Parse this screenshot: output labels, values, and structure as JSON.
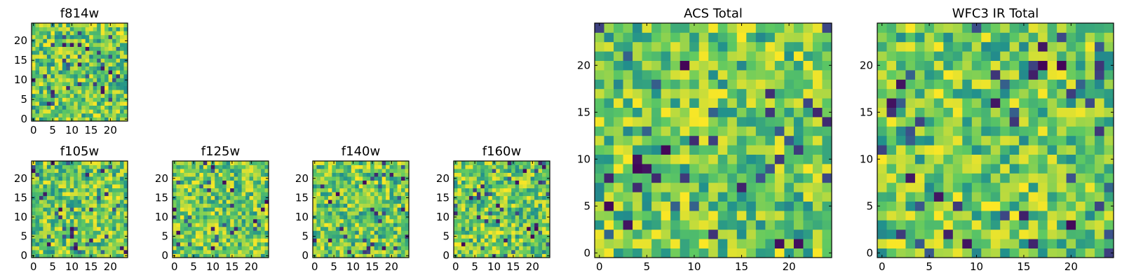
{
  "figure": {
    "colormap": "viridis",
    "colormap_stops": [
      "#440154",
      "#3b528b",
      "#21918c",
      "#5ec962",
      "#fde725"
    ],
    "background": "#ffffff"
  },
  "chart_data": [
    {
      "type": "heatmap",
      "title": "f814w",
      "grid_size": [
        25,
        25
      ],
      "xlim": [
        -0.5,
        24.5
      ],
      "ylim": [
        -0.5,
        24.5
      ],
      "xticks": [
        0,
        5,
        10,
        15,
        20
      ],
      "yticks": [
        0,
        5,
        10,
        15,
        20
      ],
      "value_range": [
        0,
        1
      ],
      "values": "pixel noise (25×25)"
    },
    {
      "type": "heatmap",
      "title": "f105w",
      "grid_size": [
        25,
        25
      ],
      "xlim": [
        -0.5,
        24.5
      ],
      "ylim": [
        -0.5,
        24.5
      ],
      "xticks": [
        0,
        5,
        10,
        15,
        20
      ],
      "yticks": [
        0,
        5,
        10,
        15,
        20
      ],
      "value_range": [
        0,
        1
      ],
      "values": "pixel noise (25×25)"
    },
    {
      "type": "heatmap",
      "title": "f125w",
      "grid_size": [
        25,
        25
      ],
      "xlim": [
        -0.5,
        24.5
      ],
      "ylim": [
        -0.5,
        24.5
      ],
      "xticks": [
        0,
        5,
        10,
        15,
        20
      ],
      "yticks": [
        0,
        5,
        10,
        15,
        20
      ],
      "value_range": [
        0,
        1
      ],
      "values": "pixel noise (25×25)"
    },
    {
      "type": "heatmap",
      "title": "f140w",
      "grid_size": [
        25,
        25
      ],
      "xlim": [
        -0.5,
        24.5
      ],
      "ylim": [
        -0.5,
        24.5
      ],
      "xticks": [
        0,
        5,
        10,
        15,
        20
      ],
      "yticks": [
        0,
        5,
        10,
        15,
        20
      ],
      "value_range": [
        0,
        1
      ],
      "values": "pixel noise (25×25)"
    },
    {
      "type": "heatmap",
      "title": "f160w",
      "grid_size": [
        25,
        25
      ],
      "xlim": [
        -0.5,
        24.5
      ],
      "ylim": [
        -0.5,
        24.5
      ],
      "xticks": [
        0,
        5,
        10,
        15,
        20
      ],
      "yticks": [
        0,
        5,
        10,
        15,
        20
      ],
      "value_range": [
        0,
        1
      ],
      "values": "pixel noise (25×25)"
    },
    {
      "type": "heatmap",
      "title": "ACS Total",
      "grid_size": [
        25,
        25
      ],
      "xlim": [
        -0.5,
        24.5
      ],
      "ylim": [
        -0.5,
        24.5
      ],
      "xticks": [
        0,
        5,
        10,
        15,
        20
      ],
      "yticks": [
        0,
        5,
        10,
        15,
        20
      ],
      "value_range": [
        0,
        1
      ],
      "values": "pixel noise (25×25)"
    },
    {
      "type": "heatmap",
      "title": "WFC3 IR Total",
      "grid_size": [
        25,
        25
      ],
      "xlim": [
        -0.5,
        24.5
      ],
      "ylim": [
        -0.5,
        24.5
      ],
      "xticks": [
        0,
        5,
        10,
        15,
        20
      ],
      "yticks": [
        0,
        5,
        10,
        15,
        20
      ],
      "value_range": [
        0,
        1
      ],
      "values": "pixel noise (25×25)"
    }
  ]
}
